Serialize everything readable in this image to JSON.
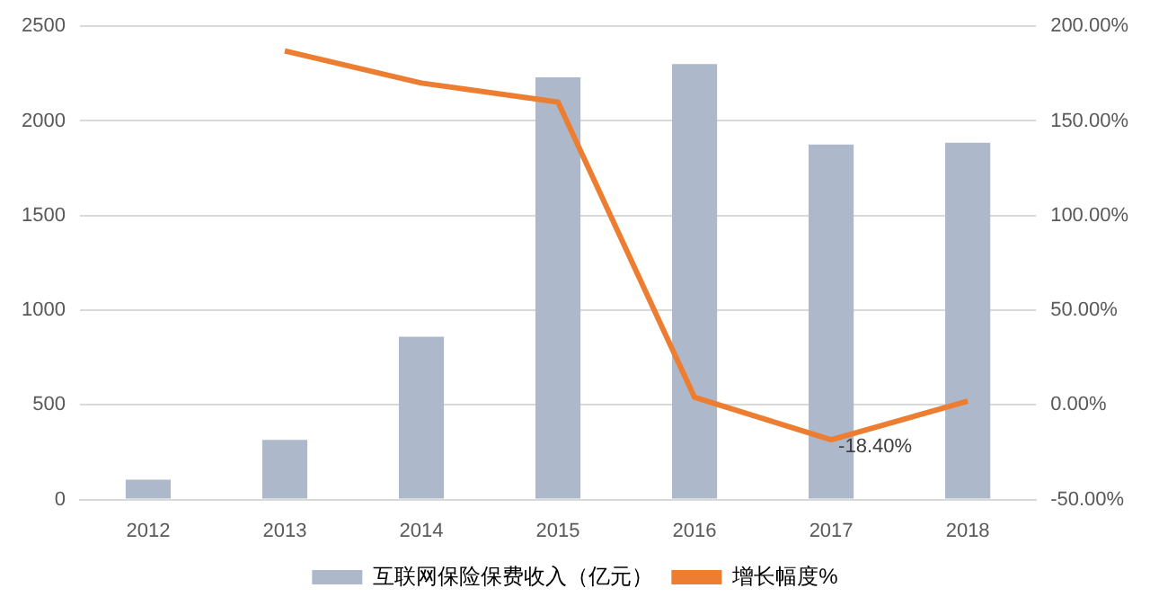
{
  "chart_data": {
    "type": "bar",
    "categories": [
      "2012",
      "2013",
      "2014",
      "2015",
      "2016",
      "2017",
      "2018"
    ],
    "series": [
      {
        "name": "互联网保险保费收入（亿元）",
        "color": "#adb9ca",
        "values": [
          105,
          315,
          860,
          2230,
          2300,
          1875,
          1885
        ]
      },
      {
        "name": "增长幅度%",
        "type": "line",
        "axis": "y2",
        "color": "#ed7d31",
        "values": [
          null,
          187,
          170,
          160,
          4,
          -18.4,
          2
        ],
        "value_labels": [
          null,
          null,
          null,
          null,
          null,
          "-18.40%",
          null
        ]
      }
    ],
    "ylim": [
      0,
      2500
    ],
    "yticks": [
      0,
      500,
      1000,
      1500,
      2000,
      2500
    ],
    "y2lim": [
      -50,
      200
    ],
    "y2ticks": [
      {
        "value": -50,
        "label": "-50.00%"
      },
      {
        "value": 0,
        "label": "0.00%"
      },
      {
        "value": 50,
        "label": "50.00%"
      },
      {
        "value": 100,
        "label": "100.00%"
      },
      {
        "value": 150,
        "label": "150.00%"
      },
      {
        "value": 200,
        "label": "200.00%"
      }
    ],
    "grid": "y",
    "legend": "bottom",
    "marker": "none"
  }
}
